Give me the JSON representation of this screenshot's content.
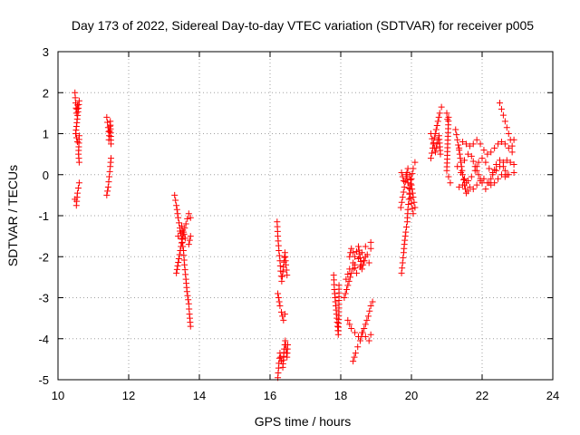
{
  "chart_data": {
    "type": "scatter",
    "title": "Day 173 of 2022, Sidereal Day-to-day VTEC variation (SDTVAR) for receiver p005",
    "xlabel": "GPS time / hours",
    "ylabel": "SDTVAR / TECUs",
    "xlim": [
      10,
      24
    ],
    "ylim": [
      -5,
      3
    ],
    "xticks": [
      10,
      12,
      14,
      16,
      18,
      20,
      22,
      24
    ],
    "yticks": [
      -5,
      -4,
      -3,
      -2,
      -1,
      0,
      1,
      2,
      3
    ],
    "grid": true,
    "marker": "+",
    "color": "#ff0000",
    "series": [
      {
        "name": "SDTVAR",
        "segments": [
          [
            [
              10.48,
              2.0
            ],
            [
              10.5,
              1.75
            ],
            [
              10.52,
              1.5
            ],
            [
              10.55,
              1.7
            ],
            [
              10.6,
              1.8
            ],
            [
              10.5,
              1.0
            ],
            [
              10.55,
              0.8
            ],
            [
              10.6,
              0.95
            ],
            [
              10.58,
              0.5
            ],
            [
              10.6,
              0.3
            ]
          ],
          [
            [
              10.48,
              -0.6
            ],
            [
              10.52,
              -0.75
            ],
            [
              10.55,
              -0.45
            ],
            [
              10.6,
              -0.2
            ]
          ],
          [
            [
              11.38,
              1.4
            ],
            [
              11.42,
              1.15
            ],
            [
              11.45,
              0.95
            ],
            [
              11.48,
              1.3
            ],
            [
              11.5,
              0.75
            ],
            [
              11.44,
              0.85
            ]
          ],
          [
            [
              11.38,
              -0.5
            ],
            [
              11.42,
              -0.3
            ],
            [
              11.45,
              -0.05
            ],
            [
              11.48,
              0.2
            ],
            [
              11.5,
              0.4
            ]
          ],
          [
            [
              13.3,
              -0.5
            ],
            [
              13.35,
              -0.75
            ],
            [
              13.4,
              -1.05
            ],
            [
              13.45,
              -1.3
            ],
            [
              13.5,
              -1.55
            ],
            [
              13.55,
              -1.85
            ],
            [
              13.58,
              -2.2
            ],
            [
              13.62,
              -2.55
            ],
            [
              13.65,
              -2.85
            ],
            [
              13.7,
              -3.15
            ],
            [
              13.72,
              -3.4
            ],
            [
              13.75,
              -3.7
            ]
          ],
          [
            [
              13.35,
              -2.4
            ],
            [
              13.42,
              -2.05
            ],
            [
              13.48,
              -1.75
            ],
            [
              13.55,
              -1.4
            ],
            [
              13.62,
              -1.2
            ],
            [
              13.7,
              -0.95
            ],
            [
              13.75,
              -1.05
            ]
          ],
          [
            [
              13.4,
              -1.5
            ],
            [
              13.5,
              -1.25
            ],
            [
              13.6,
              -1.55
            ],
            [
              13.7,
              -1.7
            ],
            [
              13.75,
              -1.5
            ]
          ],
          [
            [
              16.2,
              -1.15
            ],
            [
              16.22,
              -1.5
            ],
            [
              16.25,
              -1.85
            ],
            [
              16.28,
              -2.1
            ],
            [
              16.3,
              -2.35
            ],
            [
              16.33,
              -2.6
            ],
            [
              16.38,
              -2.25
            ],
            [
              16.42,
              -1.9
            ],
            [
              16.45,
              -2.2
            ],
            [
              16.48,
              -2.45
            ]
          ],
          [
            [
              16.22,
              -2.9
            ],
            [
              16.28,
              -3.2
            ],
            [
              16.32,
              -3.35
            ],
            [
              16.38,
              -3.55
            ],
            [
              16.42,
              -3.4
            ]
          ],
          [
            [
              16.22,
              -4.95
            ],
            [
              16.25,
              -4.6
            ],
            [
              16.28,
              -4.35
            ],
            [
              16.32,
              -4.55
            ],
            [
              16.36,
              -4.7
            ],
            [
              16.4,
              -4.25
            ],
            [
              16.43,
              -4.05
            ],
            [
              16.48,
              -4.45
            ],
            [
              16.5,
              -4.15
            ]
          ],
          [
            [
              17.8,
              -2.45
            ],
            [
              17.82,
              -2.8
            ],
            [
              17.85,
              -3.1
            ],
            [
              17.88,
              -3.4
            ],
            [
              17.9,
              -3.6
            ],
            [
              17.93,
              -3.9
            ],
            [
              17.95,
              -3.25
            ],
            [
              17.95,
              -2.7
            ]
          ],
          [
            [
              18.1,
              -3.0
            ],
            [
              18.2,
              -2.7
            ],
            [
              18.3,
              -2.4
            ],
            [
              18.4,
              -2.2
            ],
            [
              18.5,
              -2.05
            ],
            [
              18.6,
              -1.9
            ],
            [
              18.7,
              -1.75
            ],
            [
              18.85,
              -1.65
            ]
          ],
          [
            [
              18.15,
              -2.55
            ],
            [
              18.25,
              -2.3
            ],
            [
              18.35,
              -2.15
            ],
            [
              18.45,
              -2.4
            ],
            [
              18.55,
              -2.25
            ],
            [
              18.65,
              -2.1
            ],
            [
              18.75,
              -1.95
            ],
            [
              18.85,
              -1.8
            ]
          ],
          [
            [
              18.25,
              -2.0
            ],
            [
              18.3,
              -1.8
            ],
            [
              18.4,
              -2.0
            ],
            [
              18.5,
              -1.75
            ],
            [
              18.6,
              -2.3
            ],
            [
              18.7,
              -2.0
            ],
            [
              18.8,
              -2.15
            ]
          ],
          [
            [
              18.2,
              -3.55
            ],
            [
              18.3,
              -3.75
            ],
            [
              18.4,
              -3.85
            ],
            [
              18.5,
              -3.95
            ],
            [
              18.6,
              -3.85
            ],
            [
              18.7,
              -3.95
            ],
            [
              18.8,
              -4.05
            ],
            [
              18.85,
              -3.9
            ]
          ],
          [
            [
              18.35,
              -4.55
            ],
            [
              18.42,
              -4.35
            ],
            [
              18.48,
              -4.2
            ],
            [
              18.55,
              -4.05
            ],
            [
              18.62,
              -3.85
            ],
            [
              18.7,
              -3.65
            ],
            [
              18.78,
              -3.45
            ],
            [
              18.85,
              -3.2
            ],
            [
              18.9,
              -3.1
            ]
          ],
          [
            [
              19.72,
              -2.4
            ],
            [
              19.75,
              -2.15
            ],
            [
              19.78,
              -1.9
            ],
            [
              19.8,
              -1.7
            ],
            [
              19.84,
              -1.4
            ],
            [
              19.88,
              -1.15
            ],
            [
              19.9,
              -0.85
            ],
            [
              19.93,
              -0.6
            ],
            [
              19.96,
              -0.35
            ],
            [
              20.0,
              -0.1
            ],
            [
              20.05,
              0.15
            ],
            [
              20.1,
              0.3
            ]
          ],
          [
            [
              19.7,
              -0.8
            ],
            [
              19.75,
              -0.55
            ],
            [
              19.8,
              -0.3
            ],
            [
              19.85,
              -0.05
            ],
            [
              19.9,
              0.15
            ],
            [
              19.95,
              0.0
            ],
            [
              20.0,
              -0.25
            ],
            [
              20.05,
              -0.55
            ],
            [
              20.1,
              -0.8
            ]
          ],
          [
            [
              19.72,
              0.05
            ],
            [
              19.78,
              -0.15
            ],
            [
              19.85,
              0.0
            ],
            [
              19.9,
              -0.2
            ],
            [
              19.95,
              -0.45
            ],
            [
              20.0,
              -0.7
            ],
            [
              20.05,
              -0.95
            ]
          ],
          [
            [
              20.55,
              0.4
            ],
            [
              20.6,
              0.65
            ],
            [
              20.65,
              0.9
            ],
            [
              20.7,
              1.1
            ],
            [
              20.75,
              1.3
            ],
            [
              20.8,
              1.5
            ],
            [
              20.85,
              1.65
            ]
          ],
          [
            [
              20.55,
              1.0
            ],
            [
              20.62,
              0.75
            ],
            [
              20.68,
              0.55
            ],
            [
              20.72,
              0.75
            ],
            [
              20.78,
              0.95
            ],
            [
              20.82,
              0.5
            ]
          ],
          [
            [
              21.0,
              1.5
            ],
            [
              21.02,
              1.35
            ],
            [
              21.05,
              1.4
            ],
            [
              21.0,
              0.1
            ],
            [
              21.05,
              -0.05
            ],
            [
              21.1,
              -0.2
            ]
          ],
          [
            [
              21.25,
              1.1
            ],
            [
              21.3,
              0.85
            ],
            [
              21.35,
              0.6
            ],
            [
              21.4,
              0.3
            ],
            [
              21.45,
              0.0
            ],
            [
              21.5,
              -0.25
            ],
            [
              21.55,
              -0.45
            ],
            [
              21.6,
              -0.4
            ]
          ],
          [
            [
              21.35,
              0.65
            ],
            [
              21.45,
              0.8
            ],
            [
              21.55,
              0.75
            ],
            [
              21.65,
              0.7
            ],
            [
              21.75,
              0.75
            ],
            [
              21.85,
              0.85
            ],
            [
              21.95,
              0.75
            ],
            [
              22.05,
              0.6
            ],
            [
              22.15,
              0.5
            ],
            [
              22.25,
              0.55
            ],
            [
              22.35,
              0.65
            ],
            [
              22.45,
              0.75
            ],
            [
              22.55,
              0.8
            ],
            [
              22.65,
              0.75
            ],
            [
              22.75,
              0.65
            ],
            [
              22.85,
              0.55
            ]
          ],
          [
            [
              21.3,
              0.2
            ],
            [
              21.4,
              0.05
            ],
            [
              21.5,
              -0.1
            ],
            [
              21.6,
              -0.15
            ],
            [
              21.7,
              -0.05
            ],
            [
              21.8,
              0.1
            ],
            [
              21.9,
              0.3
            ],
            [
              22.0,
              0.4
            ],
            [
              22.1,
              0.3
            ],
            [
              22.2,
              0.15
            ],
            [
              22.3,
              0.05
            ],
            [
              22.4,
              0.1
            ],
            [
              22.5,
              0.2
            ],
            [
              22.6,
              0.3
            ],
            [
              22.7,
              0.35
            ],
            [
              22.8,
              0.3
            ],
            [
              22.9,
              0.25
            ]
          ],
          [
            [
              21.35,
              -0.3
            ],
            [
              21.45,
              -0.25
            ],
            [
              21.55,
              -0.2
            ],
            [
              21.65,
              -0.3
            ],
            [
              21.75,
              -0.35
            ],
            [
              21.85,
              -0.25
            ],
            [
              21.95,
              -0.15
            ],
            [
              22.05,
              -0.1
            ],
            [
              22.15,
              -0.2
            ],
            [
              22.25,
              -0.25
            ],
            [
              22.35,
              -0.2
            ],
            [
              22.45,
              -0.1
            ],
            [
              22.55,
              0.0
            ],
            [
              22.65,
              -0.05
            ],
            [
              22.75,
              0.0
            ],
            [
              22.9,
              0.05
            ]
          ],
          [
            [
              21.5,
              0.35
            ],
            [
              21.6,
              0.5
            ],
            [
              21.7,
              0.45
            ],
            [
              21.8,
              0.2
            ],
            [
              21.9,
              0.0
            ],
            [
              22.0,
              -0.2
            ],
            [
              22.1,
              -0.35
            ],
            [
              22.2,
              -0.2
            ],
            [
              22.3,
              0.0
            ],
            [
              22.4,
              0.25
            ],
            [
              22.5,
              0.35
            ],
            [
              22.6,
              0.2
            ],
            [
              22.7,
              0.0
            ]
          ],
          [
            [
              22.5,
              1.75
            ],
            [
              22.55,
              1.6
            ],
            [
              22.6,
              1.45
            ],
            [
              22.65,
              1.3
            ],
            [
              22.7,
              1.15
            ],
            [
              22.75,
              1.0
            ],
            [
              22.8,
              0.85
            ],
            [
              22.85,
              0.7
            ],
            [
              22.9,
              0.85
            ]
          ]
        ]
      }
    ]
  }
}
